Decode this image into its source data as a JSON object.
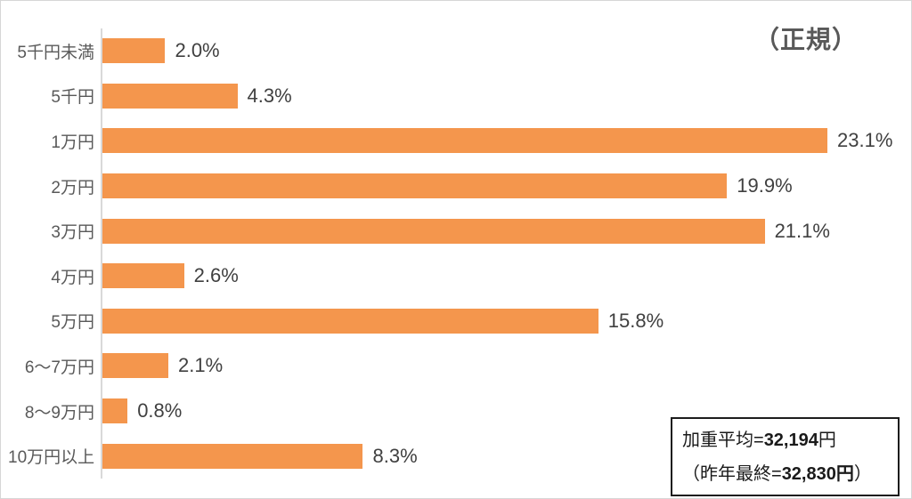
{
  "title": "（正規）",
  "chart_data": {
    "type": "bar",
    "orientation": "horizontal",
    "title": "（正規）",
    "categories": [
      "5千円未満",
      "5千円",
      "1万円",
      "2万円",
      "3万円",
      "4万円",
      "5万円",
      "6〜7万円",
      "8〜9万円",
      "10万円以上"
    ],
    "values": [
      2.0,
      4.3,
      23.1,
      19.9,
      21.1,
      2.6,
      15.8,
      2.1,
      0.8,
      8.3
    ],
    "value_labels": [
      "2.0%",
      "4.3%",
      "23.1%",
      "19.9%",
      "21.1%",
      "2.6%",
      "15.8%",
      "2.1%",
      "0.8%",
      "8.3%"
    ],
    "xlabel": "",
    "ylabel": "",
    "xlim": [
      0,
      25
    ],
    "grid": false,
    "legend": false,
    "bar_color": "#f4964d",
    "axis_color": "#d9d9d9",
    "annotation": "加重平均=32,194円（昨年最終=32,830円）"
  },
  "annotation": {
    "line1_prefix": "加重平均=",
    "line1_value": "32,194",
    "line1_suffix": "円",
    "line2_prefix": "（昨年最終=",
    "line2_value": "32,830円",
    "line2_suffix": "）"
  }
}
